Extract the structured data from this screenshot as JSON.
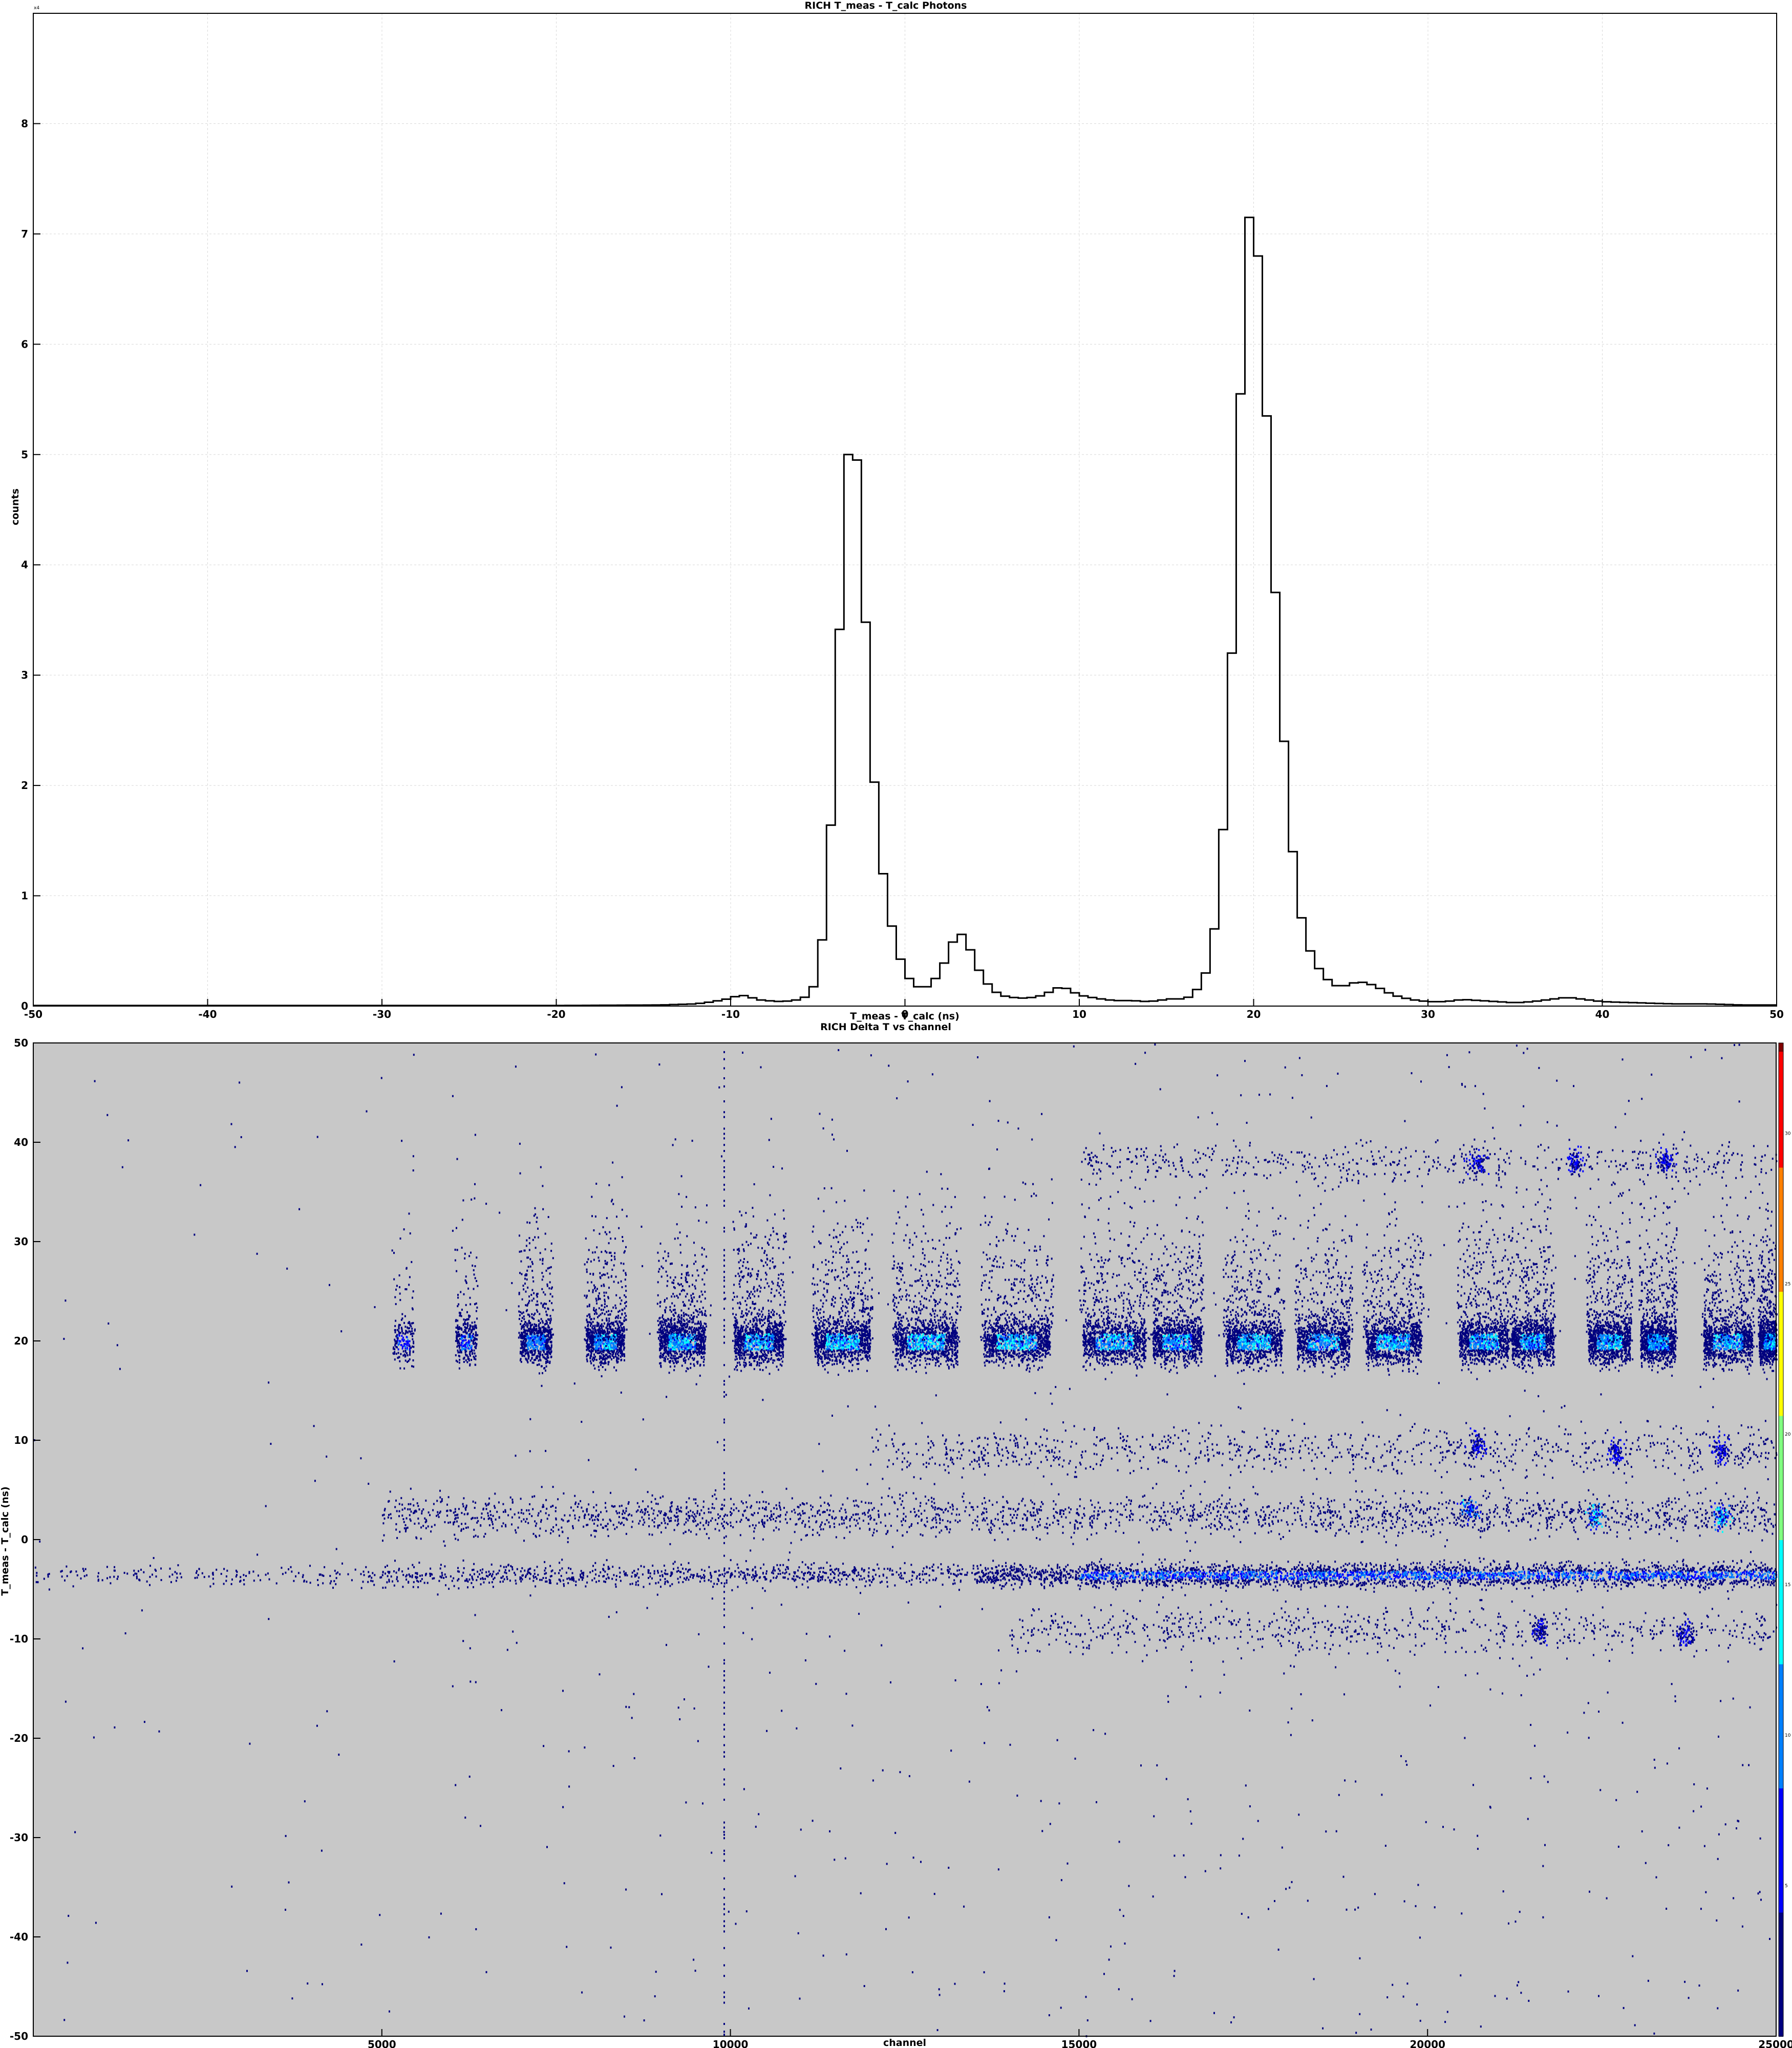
{
  "chart_data": [
    {
      "type": "histogram",
      "title": "RICH  T_meas - T_calc Photons",
      "xlabel": "T_meas - T_calc (ns)",
      "ylabel": "counts",
      "y_multiplier_label": "x4",
      "xlim": [
        -50,
        50
      ],
      "ylim": [
        0,
        9
      ],
      "x_ticks": [
        -50,
        -40,
        -30,
        -20,
        -10,
        0,
        10,
        20,
        30,
        40,
        50
      ],
      "y_ticks": [
        0,
        1,
        2,
        3,
        4,
        5,
        6,
        7,
        8
      ],
      "grid": true,
      "bin_width": 0.5,
      "points": [
        [
          -50,
          0.005
        ],
        [
          -40,
          0.005
        ],
        [
          -30,
          0.005
        ],
        [
          -20,
          0.005
        ],
        [
          -14,
          0.01
        ],
        [
          -12,
          0.02
        ],
        [
          -11,
          0.04
        ],
        [
          -10,
          0.07
        ],
        [
          -9.5,
          0.1
        ],
        [
          -9,
          0.09
        ],
        [
          -8.5,
          0.06
        ],
        [
          -8,
          0.05
        ],
        [
          -7,
          0.04
        ],
        [
          -6,
          0.06
        ],
        [
          -5.5,
          0.1
        ],
        [
          -5,
          0.25
        ],
        [
          -4.5,
          0.95
        ],
        [
          -4,
          2.33
        ],
        [
          -3.5,
          4.5
        ],
        [
          -3,
          5.5
        ],
        [
          -2.5,
          4.4
        ],
        [
          -2,
          2.56
        ],
        [
          -1.5,
          1.5
        ],
        [
          -1,
          0.9
        ],
        [
          -0.5,
          0.55
        ],
        [
          0,
          0.3
        ],
        [
          0.5,
          0.2
        ],
        [
          1,
          0.15
        ],
        [
          1.5,
          0.2
        ],
        [
          2,
          0.3
        ],
        [
          2.5,
          0.48
        ],
        [
          3,
          0.68
        ],
        [
          3.5,
          0.62
        ],
        [
          4,
          0.4
        ],
        [
          4.5,
          0.25
        ],
        [
          5,
          0.15
        ],
        [
          5.5,
          0.1
        ],
        [
          6,
          0.08
        ],
        [
          7,
          0.07
        ],
        [
          8,
          0.1
        ],
        [
          8.5,
          0.15
        ],
        [
          9,
          0.18
        ],
        [
          9.5,
          0.14
        ],
        [
          10,
          0.1
        ],
        [
          11,
          0.07
        ],
        [
          12,
          0.05
        ],
        [
          13,
          0.05
        ],
        [
          14,
          0.04
        ],
        [
          15,
          0.06
        ],
        [
          15.5,
          0.07
        ],
        [
          16,
          0.06
        ],
        [
          16.5,
          0.1
        ],
        [
          17,
          0.2
        ],
        [
          17.5,
          0.4
        ],
        [
          18,
          1.0
        ],
        [
          18.5,
          2.2
        ],
        [
          19,
          4.2
        ],
        [
          19.5,
          6.9
        ],
        [
          20,
          7.4
        ],
        [
          20.5,
          6.2
        ],
        [
          21,
          4.5
        ],
        [
          21.5,
          3.0
        ],
        [
          22,
          1.8
        ],
        [
          22.5,
          1.0
        ],
        [
          23,
          0.6
        ],
        [
          23.5,
          0.4
        ],
        [
          24,
          0.28
        ],
        [
          24.5,
          0.2
        ],
        [
          25,
          0.17
        ],
        [
          25.5,
          0.2
        ],
        [
          26,
          0.22
        ],
        [
          26.5,
          0.21
        ],
        [
          27,
          0.18
        ],
        [
          28,
          0.1
        ],
        [
          29,
          0.06
        ],
        [
          30,
          0.04
        ],
        [
          31,
          0.04
        ],
        [
          32,
          0.06
        ],
        [
          33,
          0.05
        ],
        [
          34,
          0.04
        ],
        [
          35,
          0.03
        ],
        [
          36,
          0.04
        ],
        [
          37,
          0.06
        ],
        [
          38,
          0.08
        ],
        [
          39,
          0.06
        ],
        [
          40,
          0.04
        ],
        [
          42,
          0.03
        ],
        [
          44,
          0.02
        ],
        [
          46,
          0.02
        ],
        [
          48,
          0.01
        ],
        [
          50,
          0.01
        ]
      ]
    },
    {
      "type": "heatmap",
      "title": "RICH Delta T vs channel",
      "xlabel": "channel",
      "ylabel": "T_meas - T_calc (ns)",
      "xlim": [
        0,
        25000
      ],
      "ylim": [
        -50,
        50
      ],
      "x_ticks": [
        5000,
        10000,
        15000,
        20000,
        25000
      ],
      "y_ticks": [
        -50,
        -40,
        -30,
        -20,
        -10,
        0,
        10,
        20,
        30,
        40,
        50
      ],
      "colorbar_ticks": [
        5,
        10,
        15,
        20,
        25,
        30
      ],
      "colorbar_range": [
        0,
        33
      ],
      "background": "#c8c8c8",
      "colorscale": [
        "#00007f",
        "#0000ff",
        "#007fff",
        "#00ffff",
        "#7fff7f",
        "#ffff00",
        "#ff7f00",
        "#ff0000",
        "#7f0000"
      ],
      "features": {
        "band_20ns": {
          "y": 20,
          "clusters": [
            [
              5300,
              300,
              0.15
            ],
            [
              6200,
              300,
              0.25
            ],
            [
              7200,
              450,
              0.6
            ],
            [
              8200,
              550,
              0.8
            ],
            [
              9300,
              650,
              0.85
            ],
            [
              10400,
              700,
              0.9
            ],
            [
              11600,
              800,
              0.95
            ],
            [
              12800,
              900,
              1.0
            ],
            [
              14100,
              950,
              1.0
            ],
            [
              15500,
              900,
              0.9
            ],
            [
              16400,
              700,
              0.85
            ],
            [
              17500,
              800,
              0.9
            ],
            [
              18500,
              750,
              0.85
            ],
            [
              19500,
              800,
              0.9
            ],
            [
              20800,
              700,
              0.85
            ],
            [
              21500,
              600,
              0.85
            ],
            [
              22600,
              600,
              0.9
            ],
            [
              23300,
              500,
              0.85
            ],
            [
              24300,
              700,
              0.9
            ],
            [
              24900,
              300,
              0.8
            ]
          ]
        },
        "band_minus3ns": {
          "y": -3.5,
          "segments": [
            [
              0,
              5000,
              0.1
            ],
            [
              5000,
              9000,
              0.25
            ],
            [
              9000,
              12000,
              0.3
            ],
            [
              12000,
              13500,
              0.2
            ],
            [
              13500,
              15000,
              0.6
            ],
            [
              15000,
              25000,
              0.9
            ]
          ]
        },
        "hotspots": [
          [
            20600,
            3,
            0.8
          ],
          [
            22400,
            2.5,
            0.95
          ],
          [
            24200,
            2.5,
            0.9
          ],
          [
            24200,
            9,
            0.4
          ],
          [
            22700,
            9,
            0.4
          ],
          [
            20700,
            9.5,
            0.4
          ],
          [
            22100,
            38,
            0.3
          ],
          [
            20700,
            38,
            0.35
          ],
          [
            23400,
            38,
            0.3
          ],
          [
            21600,
            -9,
            0.3
          ],
          [
            23700,
            -9.5,
            0.3
          ]
        ],
        "vertical_line_channel": 9900
      }
    }
  ]
}
